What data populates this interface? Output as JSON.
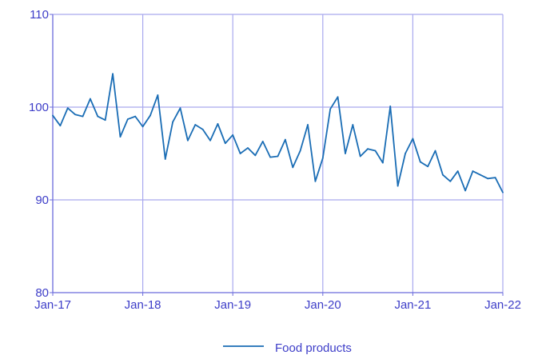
{
  "colors": {
    "axis": "#6b6bdc",
    "grid": "#a9a9ee",
    "tick_text": "#3d3dc8",
    "series": "#1a6db5",
    "legend_text": "#3d3dc8"
  },
  "chart_data": {
    "type": "line",
    "title": "",
    "xlabel": "",
    "ylabel": "",
    "ylim": [
      80,
      110
    ],
    "yticks": [
      80,
      90,
      100,
      110
    ],
    "xlim": [
      "2017-01",
      "2022-01"
    ],
    "xticks": [
      {
        "date": "2017-01",
        "label": "Jan-17"
      },
      {
        "date": "2018-01",
        "label": "Jan-18"
      },
      {
        "date": "2019-01",
        "label": "Jan-19"
      },
      {
        "date": "2020-01",
        "label": "Jan-20"
      },
      {
        "date": "2021-01",
        "label": "Jan-21"
      },
      {
        "date": "2022-01",
        "label": "Jan-22"
      }
    ],
    "grid": true,
    "legend_position": "bottom",
    "series": [
      {
        "name": "Food products",
        "x": [
          "2017-01",
          "2017-02",
          "2017-03",
          "2017-04",
          "2017-05",
          "2017-06",
          "2017-07",
          "2017-08",
          "2017-09",
          "2017-10",
          "2017-11",
          "2017-12",
          "2018-01",
          "2018-02",
          "2018-03",
          "2018-04",
          "2018-05",
          "2018-06",
          "2018-07",
          "2018-08",
          "2018-09",
          "2018-10",
          "2018-11",
          "2018-12",
          "2019-01",
          "2019-02",
          "2019-03",
          "2019-04",
          "2019-05",
          "2019-06",
          "2019-07",
          "2019-08",
          "2019-09",
          "2019-10",
          "2019-11",
          "2019-12",
          "2020-01",
          "2020-02",
          "2020-03",
          "2020-04",
          "2020-05",
          "2020-06",
          "2020-07",
          "2020-08",
          "2020-09",
          "2020-10",
          "2020-11",
          "2020-12",
          "2021-01",
          "2021-02",
          "2021-03",
          "2021-04",
          "2021-05",
          "2021-06",
          "2021-07",
          "2021-08",
          "2021-09",
          "2021-10",
          "2021-11",
          "2021-12",
          "2022-01"
        ],
        "y": [
          99.1,
          98.0,
          99.9,
          99.2,
          99.0,
          100.9,
          99.0,
          98.6,
          103.6,
          96.8,
          98.7,
          99.0,
          97.9,
          99.1,
          101.3,
          94.4,
          98.4,
          99.9,
          96.4,
          98.1,
          97.6,
          96.4,
          98.2,
          96.1,
          97.0,
          95.0,
          95.6,
          94.8,
          96.3,
          94.6,
          94.7,
          96.5,
          93.5,
          95.3,
          98.1,
          92.0,
          94.5,
          99.8,
          101.1,
          95.0,
          98.1,
          94.7,
          95.5,
          95.3,
          94.0,
          100.1,
          91.5,
          95.0,
          96.6,
          94.1,
          93.6,
          95.3,
          92.7,
          92.0,
          93.1,
          91.0,
          93.1,
          92.7,
          92.3,
          92.4,
          90.8
        ]
      }
    ]
  }
}
